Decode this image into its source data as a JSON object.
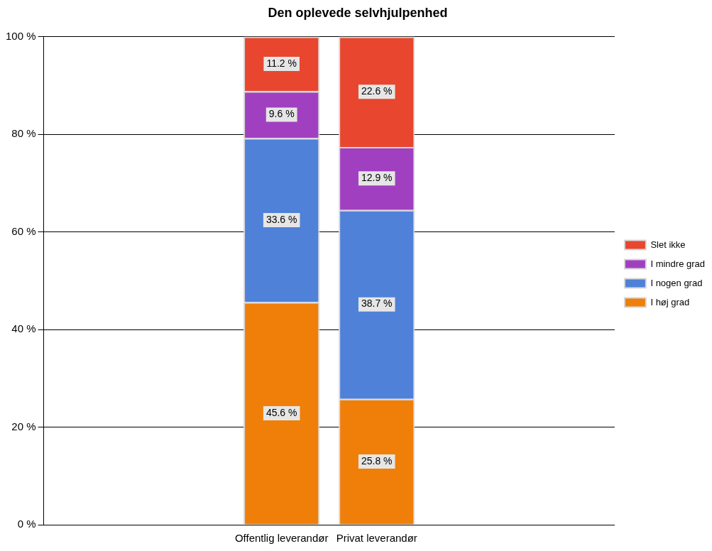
{
  "chart_data": {
    "type": "bar",
    "stacked": true,
    "title": "Den oplevede selvhjulpenhed",
    "categories": [
      "Offentlig leverandør",
      "Privat leverandør"
    ],
    "series": [
      {
        "name": "I høj grad",
        "color": "#f07f09",
        "values": [
          45.6,
          25.8
        ],
        "value_labels": [
          "45.6 %",
          "25.8 %"
        ]
      },
      {
        "name": "I nogen grad",
        "color": "#4f81d9",
        "values": [
          33.6,
          38.7
        ],
        "value_labels": [
          "33.6 %",
          "38.7 %"
        ]
      },
      {
        "name": "I mindre grad",
        "color": "#a040c0",
        "values": [
          9.6,
          12.9
        ],
        "value_labels": [
          "9.6 %",
          "12.9 %"
        ]
      },
      {
        "name": "Slet ikke",
        "color": "#e8462e",
        "values": [
          11.2,
          22.6
        ],
        "value_labels": [
          "11.2 %",
          "22.6 %"
        ]
      }
    ],
    "ylim": [
      0,
      100
    ],
    "yticks": [
      {
        "value": 0,
        "label": "0 %"
      },
      {
        "value": 20,
        "label": "20 %"
      },
      {
        "value": 40,
        "label": "40 %"
      },
      {
        "value": 60,
        "label": "60 %"
      },
      {
        "value": 80,
        "label": "80 %"
      },
      {
        "value": 100,
        "label": "100 %"
      }
    ],
    "grid": "y",
    "legend": "right"
  }
}
